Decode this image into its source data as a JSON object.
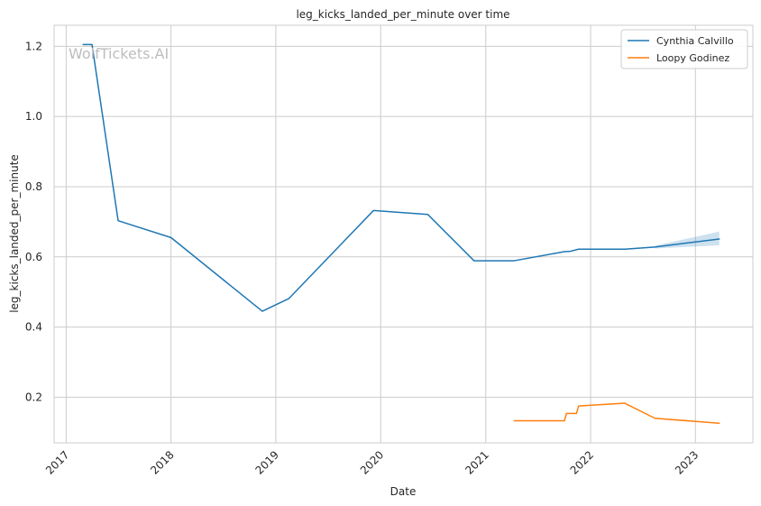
{
  "chart_data": {
    "type": "line",
    "title": "leg_kicks_landed_per_minute over time",
    "xlabel": "Date",
    "ylabel": "leg_kicks_landed_per_minute",
    "watermark": "WolfTickets.AI",
    "xlim": [
      "2016-11-20",
      "2023-07-20"
    ],
    "ylim": [
      0.07,
      1.26
    ],
    "x_ticks": [
      "2017",
      "2018",
      "2019",
      "2020",
      "2021",
      "2022",
      "2023"
    ],
    "y_ticks": [
      "0.2",
      "0.4",
      "0.6",
      "0.8",
      "1.0",
      "1.2"
    ],
    "grid": true,
    "legend_position": "top-right",
    "series": [
      {
        "name": "Cynthia Calvillo",
        "color": "#1f77b4",
        "points": [
          {
            "x": "2017-03-01",
            "y": 1.205
          },
          {
            "x": "2017-04-01",
            "y": 1.205
          },
          {
            "x": "2017-07-01",
            "y": 0.703
          },
          {
            "x": "2018-01-01",
            "y": 0.655
          },
          {
            "x": "2018-11-15",
            "y": 0.445
          },
          {
            "x": "2019-02-15",
            "y": 0.481
          },
          {
            "x": "2019-12-07",
            "y": 0.732
          },
          {
            "x": "2020-06-13",
            "y": 0.721
          },
          {
            "x": "2020-11-21",
            "y": 0.589
          },
          {
            "x": "2021-04-10",
            "y": 0.589
          },
          {
            "x": "2021-10-02",
            "y": 0.615
          },
          {
            "x": "2021-10-23",
            "y": 0.616
          },
          {
            "x": "2021-11-20",
            "y": 0.622
          },
          {
            "x": "2022-04-30",
            "y": 0.622
          },
          {
            "x": "2022-08-13",
            "y": 0.628
          },
          {
            "x": "2023-03-25",
            "y": 0.651
          }
        ],
        "band": [
          {
            "x": "2022-08-13",
            "lower": 0.624,
            "upper": 0.632
          },
          {
            "x": "2023-03-25",
            "lower": 0.633,
            "upper": 0.672
          }
        ]
      },
      {
        "name": "Loopy Godinez",
        "color": "#ff7f0e",
        "points": [
          {
            "x": "2021-04-10",
            "y": 0.133
          },
          {
            "x": "2021-10-02",
            "y": 0.133
          },
          {
            "x": "2021-10-09",
            "y": 0.154
          },
          {
            "x": "2021-11-13",
            "y": 0.154
          },
          {
            "x": "2021-11-20",
            "y": 0.175
          },
          {
            "x": "2022-04-30",
            "y": 0.183
          },
          {
            "x": "2022-08-13",
            "y": 0.14
          },
          {
            "x": "2023-03-25",
            "y": 0.126
          }
        ]
      }
    ]
  }
}
